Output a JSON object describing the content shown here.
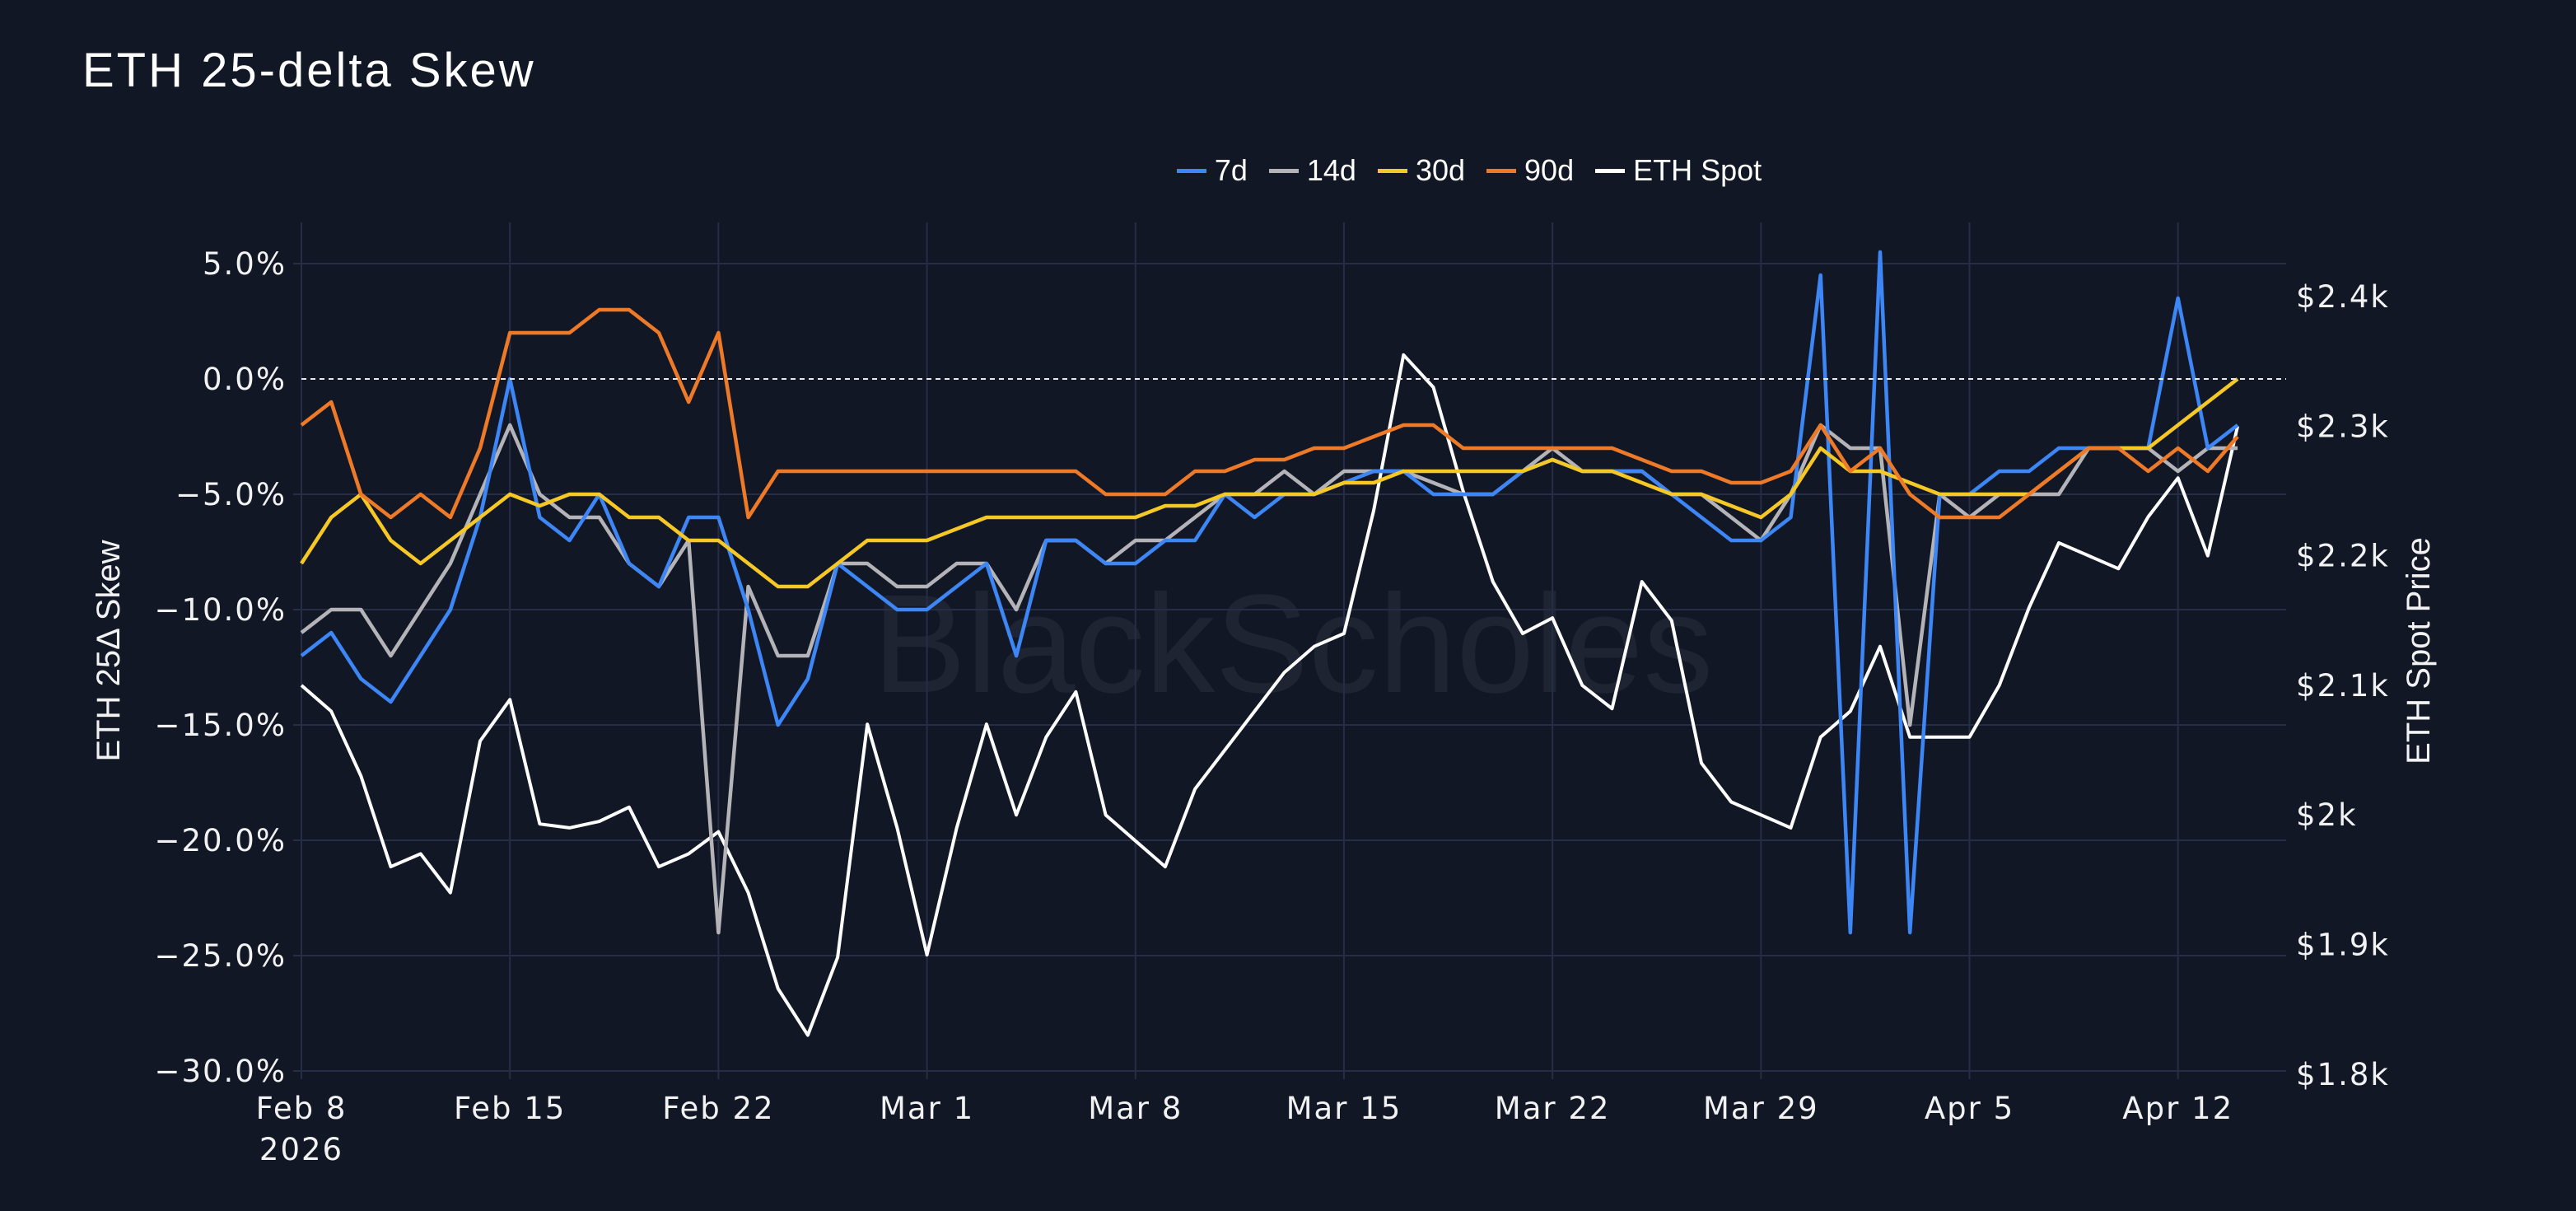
{
  "title": "ETH 25-delta Skew",
  "watermark": "BlackScholes",
  "chart_data": {
    "type": "line",
    "title": "ETH 25-delta Skew",
    "xlabel": "",
    "ylabel": "ETH 25Δ Skew",
    "y2label": "ETH Spot Price",
    "ylim": [
      -30,
      5
    ],
    "y2lim": [
      1800,
      2400
    ],
    "xlim": [
      "2026-02-08",
      "2026-04-15"
    ],
    "grid": true,
    "legend_position": "top-center",
    "zero_line": "dashed",
    "x_ticks": [
      "Feb 8",
      "Feb 15",
      "Feb 22",
      "Mar 1",
      "Mar 8",
      "Mar 15",
      "Mar 22",
      "Mar 29",
      "Apr 5",
      "Apr 12"
    ],
    "x_tick_year": "2026",
    "y_ticks": [
      "5.0%",
      "0.0%",
      "−5.0%",
      "−10.0%",
      "−15.0%",
      "−20.0%",
      "−25.0%",
      "−30.0%"
    ],
    "y2_ticks": [
      "$2.4k",
      "$2.3k",
      "$2.2k",
      "$2.1k",
      "$2k",
      "$1.9k",
      "$1.8k"
    ],
    "start_date": "2026-02-08",
    "frequency": "daily",
    "series": [
      {
        "name": "7d",
        "axis": "left",
        "color": "#3d86f5",
        "values": [
          -12,
          -11,
          -13,
          -14,
          -12,
          -10,
          -6,
          0,
          -6,
          -7,
          -5,
          -8,
          -9,
          -6,
          -6,
          -10,
          -15,
          -13,
          -8,
          -9,
          -10,
          -10,
          -9,
          -8,
          -12,
          -7,
          -7,
          -8,
          -8,
          -7,
          -7,
          -5,
          -6,
          -5,
          -5,
          -4.5,
          -4,
          -4,
          -5,
          -5,
          -5,
          -4,
          -3.5,
          -4,
          -4,
          -4,
          -5,
          -6,
          -7,
          -7,
          -6,
          4.5,
          -24,
          5.5,
          -24,
          -5,
          -5,
          -4,
          -4,
          -3,
          -3,
          -3,
          -3,
          3.5,
          -3,
          -2
        ]
      },
      {
        "name": "14d",
        "axis": "left",
        "color": "#b4b4b8",
        "values": [
          -11,
          -10,
          -10,
          -12,
          -10,
          -8,
          -5,
          -2,
          -5,
          -6,
          -6,
          -8,
          -9,
          -7,
          -24,
          -9,
          -12,
          -12,
          -8,
          -8,
          -9,
          -9,
          -8,
          -8,
          -10,
          -7,
          -7,
          -8,
          -7,
          -7,
          -6,
          -5,
          -5,
          -4,
          -5,
          -4,
          -4,
          -4,
          -4.5,
          -5,
          -5,
          -4,
          -3,
          -4,
          -4,
          -4,
          -5,
          -5,
          -6,
          -7,
          -5,
          -2,
          -3,
          -3,
          -15,
          -5,
          -6,
          -5,
          -5,
          -5,
          -3,
          -3,
          -3,
          -4,
          -3,
          -3
        ]
      },
      {
        "name": "30d",
        "axis": "left",
        "color": "#f5c826",
        "values": [
          -8,
          -6,
          -5,
          -7,
          -8,
          -7,
          -6,
          -5,
          -5.5,
          -5,
          -5,
          -6,
          -6,
          -7,
          -7,
          -8,
          -9,
          -9,
          -8,
          -7,
          -7,
          -7,
          -6.5,
          -6,
          -6,
          -6,
          -6,
          -6,
          -6,
          -5.5,
          -5.5,
          -5,
          -5,
          -5,
          -5,
          -4.5,
          -4.5,
          -4,
          -4,
          -4,
          -4,
          -4,
          -3.5,
          -4,
          -4,
          -4.5,
          -5,
          -5,
          -5.5,
          -6,
          -5,
          -3,
          -4,
          -4,
          -4.5,
          -5,
          -5,
          -5,
          -5,
          -4,
          -3,
          -3,
          -3,
          -2,
          -1,
          0
        ]
      },
      {
        "name": "90d",
        "axis": "left",
        "color": "#ee7a28",
        "values": [
          -2,
          -1,
          -5,
          -6,
          -5,
          -6,
          -3,
          2,
          2,
          2,
          3,
          3,
          2,
          -1,
          2,
          -6,
          -4,
          -4,
          -4,
          -4,
          -4,
          -4,
          -4,
          -4,
          -4,
          -4,
          -4,
          -5,
          -5,
          -5,
          -4,
          -4,
          -3.5,
          -3.5,
          -3,
          -3,
          -2.5,
          -2,
          -2,
          -3,
          -3,
          -3,
          -3,
          -3,
          -3,
          -3.5,
          -4,
          -4,
          -4.5,
          -4.5,
          -4,
          -2,
          -4,
          -3,
          -5,
          -6,
          -6,
          -6,
          -5,
          -4,
          -3,
          -3,
          -4,
          -3,
          -4,
          -2.5
        ]
      },
      {
        "name": "ETH Spot",
        "axis": "right",
        "color": "#ffffff",
        "values": [
          2100,
          2080,
          2030,
          1960,
          1970,
          1940,
          2057,
          2089,
          1993,
          1990,
          1995,
          2006,
          1960,
          1970,
          1987,
          1940,
          1866,
          1830,
          1890,
          2070,
          1990,
          1892,
          1990,
          2070,
          2000,
          2060,
          2095,
          2000,
          1980,
          1960,
          2020,
          2050,
          2080,
          2110,
          2130,
          2140,
          2235,
          2355,
          2330,
          2250,
          2180,
          2140,
          2152,
          2100,
          2082,
          2180,
          2150,
          2040,
          2010,
          2000,
          1990,
          2060,
          2080,
          2130,
          2060,
          2060,
          2060,
          2100,
          2160,
          2210,
          2200,
          2190,
          2230,
          2260,
          2200,
          2300
        ]
      }
    ],
    "colors": {
      "background": "#121726",
      "grid": "#262d47"
    }
  }
}
